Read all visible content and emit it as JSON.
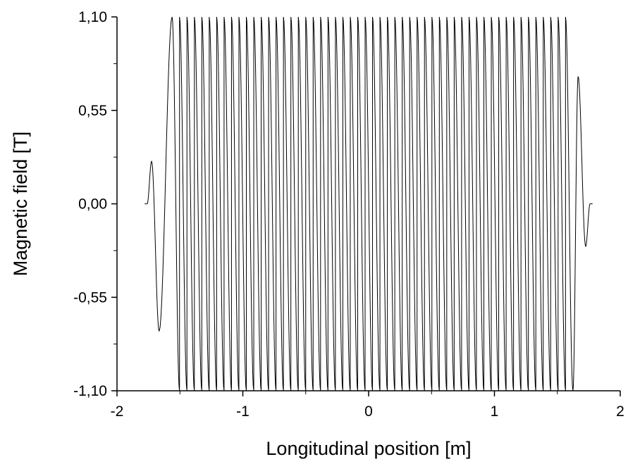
{
  "chart_data": {
    "type": "line",
    "title": "",
    "xlabel": "Longitudinal position [m]",
    "ylabel": "Magnetic field [T]",
    "xlim": [
      -2,
      2
    ],
    "ylim": [
      -1.1,
      1.1
    ],
    "x_ticks": [
      -2,
      -1,
      0,
      1,
      2
    ],
    "x_tick_labels": [
      "-2",
      "-1",
      "0",
      "1",
      "2"
    ],
    "y_ticks": [
      -1.1,
      -0.55,
      0.0,
      0.55,
      1.1
    ],
    "y_tick_labels": [
      "-1,10",
      "-0,55",
      "0,00",
      "0,55",
      "1,10"
    ],
    "grid": false,
    "legend": "none",
    "line_color": "#000000",
    "series": [
      {
        "period_m": 0.118,
        "amplitude_T": 1.1,
        "x_start": -1.78,
        "x_end": 1.78,
        "flat_start_end": -1.76,
        "flat_end_start": 1.76,
        "crest_x": [
          -1.562,
          -1.503,
          -1.444,
          -1.385,
          -1.326,
          -1.267,
          -1.208,
          -1.149,
          -1.09,
          -1.031,
          -0.972,
          -0.913,
          -0.854,
          -0.795,
          -0.736,
          -0.677,
          -0.618,
          -0.559,
          -0.5,
          -0.441,
          -0.382,
          -0.323,
          -0.264,
          -0.205,
          -0.146,
          -0.087,
          -0.028,
          0.031,
          0.09,
          0.149,
          0.208,
          0.267,
          0.326,
          0.385,
          0.444,
          0.503,
          0.562,
          0.621,
          0.68,
          0.739,
          0.798,
          0.857,
          0.916,
          0.975,
          1.034,
          1.093,
          1.152,
          1.211,
          1.27,
          1.329,
          1.388,
          1.447,
          1.506,
          1.565
        ],
        "end_poles": [
          {
            "x": -1.725,
            "y": 0.25
          },
          {
            "x": -1.665,
            "y": -0.75
          },
          {
            "x": 1.665,
            "y": 0.75
          },
          {
            "x": 1.725,
            "y": -0.25
          }
        ]
      }
    ]
  }
}
